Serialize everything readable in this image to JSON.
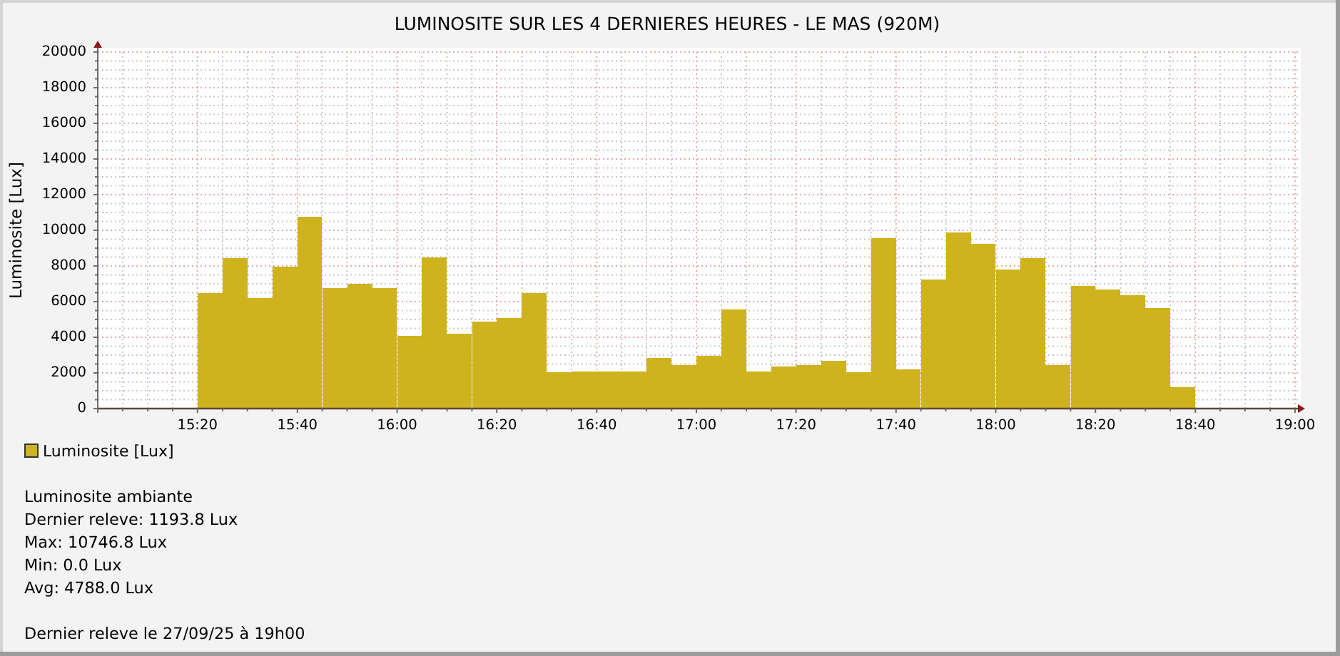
{
  "chart_data": {
    "type": "bar",
    "title": "LUMINOSITE SUR LES 4 DERNIERES HEURES - LE MAS (920M)",
    "ylabel": "Luminosite [Lux]",
    "x": [
      15.375,
      15.458,
      15.542,
      15.625,
      15.708,
      15.792,
      15.875,
      15.958,
      16.042,
      16.125,
      16.208,
      16.292,
      16.375,
      16.458,
      16.542,
      16.625,
      16.708,
      16.792,
      16.875,
      16.958,
      17.042,
      17.125,
      17.208,
      17.292,
      17.375,
      17.458,
      17.542,
      17.625,
      17.708,
      17.792,
      17.875,
      17.958,
      18.042,
      18.125,
      18.208,
      18.292,
      18.375,
      18.458,
      18.542,
      18.625
    ],
    "series": [
      {
        "name": "Luminosite [Lux]",
        "color": "#ceb31e",
        "values": [
          6500,
          8450,
          6200,
          7950,
          10746.8,
          6750,
          7000,
          6750,
          4100,
          8500,
          4200,
          4900,
          5100,
          6500,
          2050,
          2100,
          2100,
          2100,
          2850,
          2450,
          2950,
          5550,
          2100,
          2350,
          2450,
          2700,
          2050,
          9550,
          2200,
          7250,
          9900,
          9250,
          7800,
          8450,
          2450,
          6900,
          6700,
          6350,
          5650,
          1193.8
        ]
      }
    ],
    "xlim": [
      15,
      19
    ],
    "xticks": [
      {
        "value": 15.083,
        "label": null
      },
      {
        "value": 15.167,
        "label": null
      },
      {
        "value": 15.25,
        "label": null
      },
      {
        "value": 15.333,
        "label": "15:20"
      },
      {
        "value": 15.417,
        "label": null
      },
      {
        "value": 15.5,
        "label": null
      },
      {
        "value": 15.583,
        "label": null
      },
      {
        "value": 15.667,
        "label": "15:40"
      },
      {
        "value": 15.75,
        "label": null
      },
      {
        "value": 15.833,
        "label": null
      },
      {
        "value": 15.917,
        "label": null
      },
      {
        "value": 16,
        "label": "16:00"
      },
      {
        "value": 16.083,
        "label": null
      },
      {
        "value": 16.167,
        "label": null
      },
      {
        "value": 16.25,
        "label": null
      },
      {
        "value": 16.333,
        "label": "16:20"
      },
      {
        "value": 16.417,
        "label": null
      },
      {
        "value": 16.5,
        "label": null
      },
      {
        "value": 16.583,
        "label": null
      },
      {
        "value": 16.667,
        "label": "16:40"
      },
      {
        "value": 16.75,
        "label": null
      },
      {
        "value": 16.833,
        "label": null
      },
      {
        "value": 16.917,
        "label": null
      },
      {
        "value": 17,
        "label": "17:00"
      },
      {
        "value": 17.083,
        "label": null
      },
      {
        "value": 17.167,
        "label": null
      },
      {
        "value": 17.25,
        "label": null
      },
      {
        "value": 17.333,
        "label": "17:20"
      },
      {
        "value": 17.417,
        "label": null
      },
      {
        "value": 17.5,
        "label": null
      },
      {
        "value": 17.583,
        "label": null
      },
      {
        "value": 17.667,
        "label": "17:40"
      },
      {
        "value": 17.75,
        "label": null
      },
      {
        "value": 17.833,
        "label": null
      },
      {
        "value": 17.917,
        "label": null
      },
      {
        "value": 18,
        "label": "18:00"
      },
      {
        "value": 18.083,
        "label": null
      },
      {
        "value": 18.167,
        "label": null
      },
      {
        "value": 18.25,
        "label": null
      },
      {
        "value": 18.333,
        "label": "18:20"
      },
      {
        "value": 18.417,
        "label": null
      },
      {
        "value": 18.5,
        "label": null
      },
      {
        "value": 18.583,
        "label": null
      },
      {
        "value": 18.667,
        "label": "18:40"
      },
      {
        "value": 18.75,
        "label": null
      },
      {
        "value": 18.833,
        "label": null
      },
      {
        "value": 18.917,
        "label": null
      },
      {
        "value": 19,
        "label": "19:00"
      }
    ],
    "ylim": [
      0,
      20000
    ],
    "yticks": [
      0,
      {
        "value": 500,
        "label": null
      },
      {
        "value": 1000,
        "label": null
      },
      {
        "value": 1500,
        "label": null
      },
      2000,
      {
        "value": 2500,
        "label": null
      },
      {
        "value": 3000,
        "label": null
      },
      {
        "value": 3500,
        "label": null
      },
      4000,
      {
        "value": 4500,
        "label": null
      },
      {
        "value": 5000,
        "label": null
      },
      {
        "value": 5500,
        "label": null
      },
      6000,
      {
        "value": 6500,
        "label": null
      },
      {
        "value": 7000,
        "label": null
      },
      {
        "value": 7500,
        "label": null
      },
      8000,
      {
        "value": 8500,
        "label": null
      },
      {
        "value": 9000,
        "label": null
      },
      {
        "value": 9500,
        "label": null
      },
      10000,
      {
        "value": 10500,
        "label": null
      },
      {
        "value": 11000,
        "label": null
      },
      {
        "value": 11500,
        "label": null
      },
      12000,
      {
        "value": 12500,
        "label": null
      },
      {
        "value": 13000,
        "label": null
      },
      {
        "value": 13500,
        "label": null
      },
      14000,
      {
        "value": 14500,
        "label": null
      },
      {
        "value": 15000,
        "label": null
      },
      {
        "value": 15500,
        "label": null
      },
      16000,
      {
        "value": 16500,
        "label": null
      },
      {
        "value": 17000,
        "label": null
      },
      {
        "value": 17500,
        "label": null
      },
      18000,
      {
        "value": 18500,
        "label": null
      },
      {
        "value": 19000,
        "label": null
      },
      {
        "value": 19500,
        "label": null
      },
      20000
    ],
    "grid": true,
    "legend": "bottom left",
    "annotations": [
      "Luminosite ambiante",
      "Dernier releve: 1193.8 Lux",
      "Max: 10746.8 Lux",
      "Min: 0.0 Lux",
      "Avg: 4788.0 Lux",
      "Dernier releve le 27/09/25 à 19h00"
    ]
  }
}
